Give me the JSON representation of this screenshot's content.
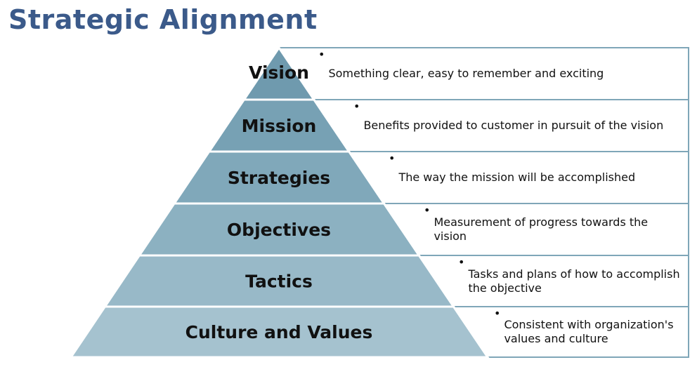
{
  "title": "Strategic Alignment",
  "colors": {
    "title": "#3b5a8a",
    "box_border": "#7fa6b8",
    "tiers": [
      "#6f9aae",
      "#77a1b4",
      "#80a8ba",
      "#8cb1c1",
      "#98b9c8",
      "#a5c2cf"
    ]
  },
  "tiers": [
    {
      "label": "Vision",
      "description": "Something clear, easy to remember and exciting"
    },
    {
      "label": "Mission",
      "description": "Benefits provided to customer in pursuit of the vision"
    },
    {
      "label": "Strategies",
      "description": "The way the mission will be accomplished"
    },
    {
      "label": "Objectives",
      "description": "Measurement of progress towards the vision"
    },
    {
      "label": "Tactics",
      "description": "Tasks and plans of how to accomplish the objective"
    },
    {
      "label": "Culture and Values",
      "description": "Consistent with organization's values and culture"
    }
  ]
}
